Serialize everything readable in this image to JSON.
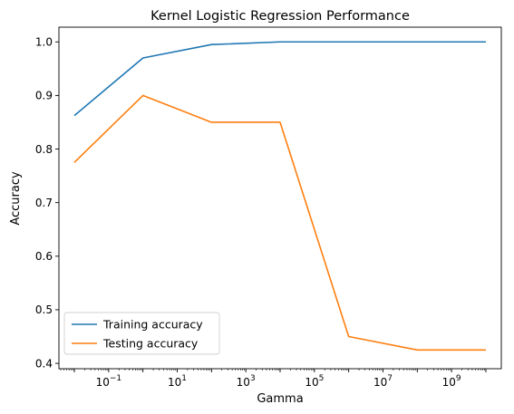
{
  "chart_data": {
    "type": "line",
    "title": "Kernel Logistic Regression Performance",
    "xlabel": "Gamma",
    "ylabel": "Accuracy",
    "xscale": "log",
    "xlim": [
      0.01,
      10000000000
    ],
    "ylim": [
      0.4,
      1.0
    ],
    "grid": false,
    "legend_position": "lower-left",
    "x": [
      0.01,
      1,
      100,
      10000,
      1000000,
      100000000,
      10000000000
    ],
    "series": [
      {
        "name": "Training accuracy",
        "color": "#1f77b4",
        "values": [
          0.8625,
          0.97,
          0.995,
          1.0,
          1.0,
          1.0,
          1.0
        ]
      },
      {
        "name": "Testing accuracy",
        "color": "#ff7f0e",
        "values": [
          0.775,
          0.9,
          0.85,
          0.85,
          0.45,
          0.425,
          0.425
        ]
      }
    ],
    "x_ticks": [
      {
        "exp": -1,
        "base": "10",
        "sup": "−1"
      },
      {
        "exp": 1,
        "base": "10",
        "sup": "1"
      },
      {
        "exp": 3,
        "base": "10",
        "sup": "3"
      },
      {
        "exp": 5,
        "base": "10",
        "sup": "5"
      },
      {
        "exp": 7,
        "base": "10",
        "sup": "7"
      },
      {
        "exp": 9,
        "base": "10",
        "sup": "9"
      }
    ],
    "y_ticks": [
      {
        "value": 0.4,
        "label": "0.4"
      },
      {
        "value": 0.5,
        "label": "0.5"
      },
      {
        "value": 0.6,
        "label": "0.6"
      },
      {
        "value": 0.7,
        "label": "0.7"
      },
      {
        "value": 0.8,
        "label": "0.8"
      },
      {
        "value": 0.9,
        "label": "0.9"
      },
      {
        "value": 1.0,
        "label": "1.0"
      }
    ]
  }
}
